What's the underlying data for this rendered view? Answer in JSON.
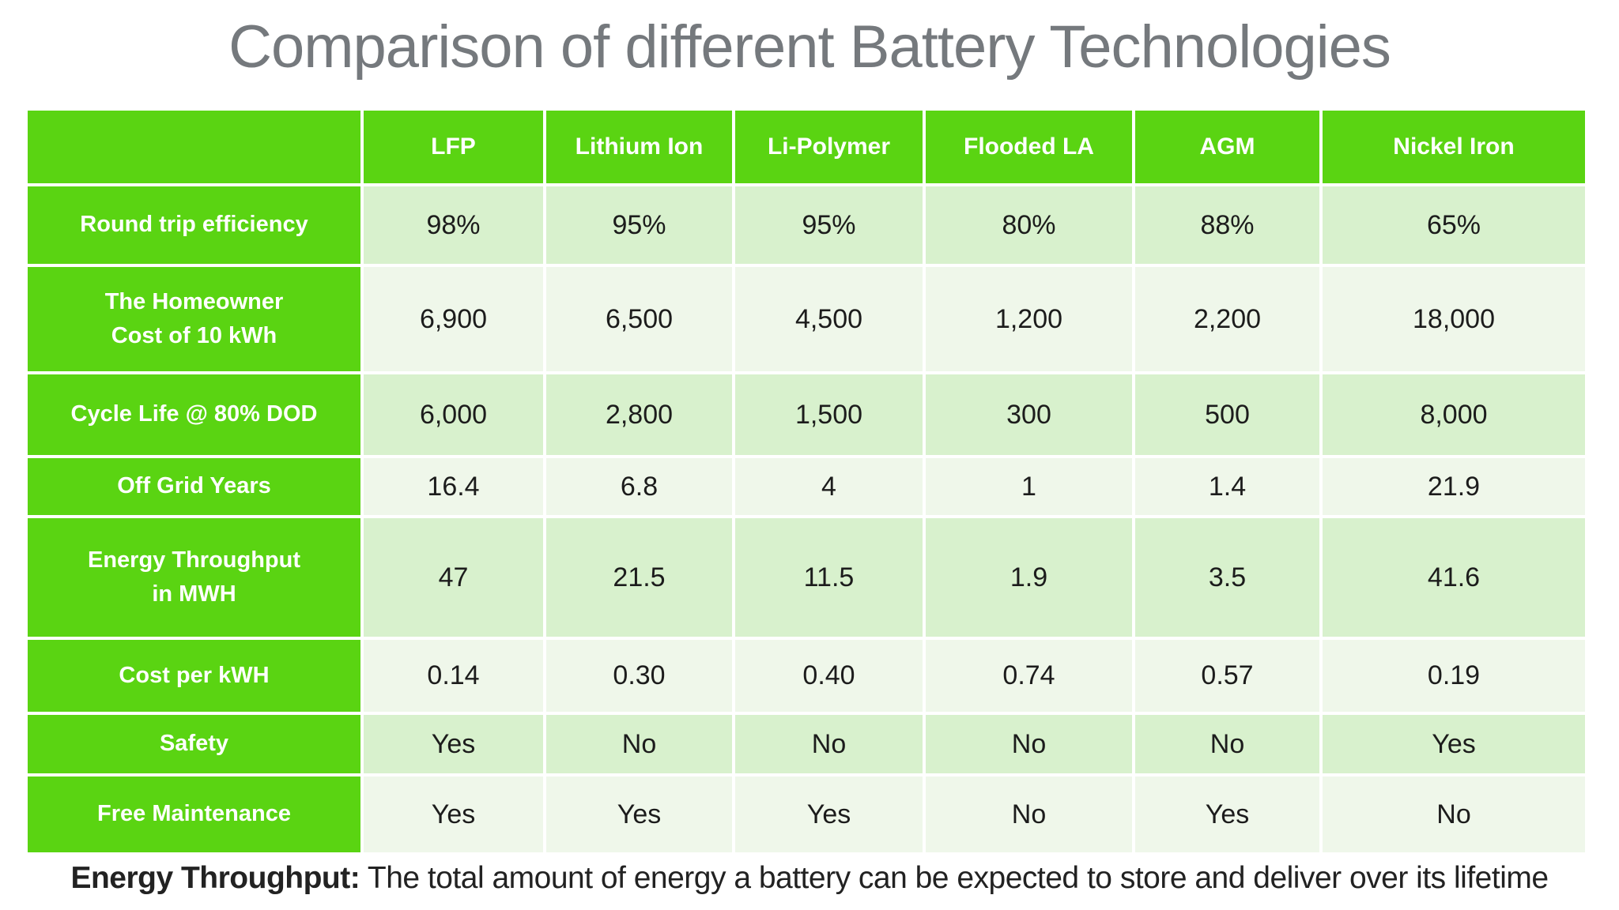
{
  "chart_data": {
    "type": "table",
    "title": "Comparison of different Battery Technologies",
    "columns": [
      "LFP",
      "Lithium Ion",
      "Li-Polymer",
      "Flooded LA",
      "AGM",
      "Nickel Iron"
    ],
    "rows": [
      {
        "label": "Round trip efficiency",
        "values": [
          "98%",
          "95%",
          "95%",
          "80%",
          "88%",
          "65%"
        ]
      },
      {
        "label": "The Homeowner\nCost of 10 kWh",
        "values": [
          "6,900",
          "6,500",
          "4,500",
          "1,200",
          "2,200",
          "18,000"
        ]
      },
      {
        "label": "Cycle Life @ 80% DOD",
        "values": [
          "6,000",
          "2,800",
          "1,500",
          "300",
          "500",
          "8,000"
        ]
      },
      {
        "label": "Off Grid Years",
        "values": [
          "16.4",
          "6.8",
          "4",
          "1",
          "1.4",
          "21.9"
        ]
      },
      {
        "label": "Energy Throughput\nin MWH",
        "values": [
          "47",
          "21.5",
          "11.5",
          "1.9",
          "3.5",
          "41.6"
        ]
      },
      {
        "label": "Cost per kWH",
        "values": [
          "0.14",
          "0.30",
          "0.40",
          "0.74",
          "0.57",
          "0.19"
        ]
      },
      {
        "label": "Safety",
        "values": [
          "Yes",
          "No",
          "No",
          "No",
          "No",
          "Yes"
        ]
      },
      {
        "label": "Free Maintenance",
        "values": [
          "Yes",
          "Yes",
          "Yes",
          "No",
          "Yes",
          "No"
        ]
      }
    ]
  },
  "footnote": {
    "term": "Energy Throughput:",
    "definition": " The total amount of energy a battery can be expected to store and deliver over its lifetime"
  },
  "colors": {
    "header_green": "#5ad412",
    "row_light_green": "#d8f1cd",
    "row_pale_green": "#eff7ea",
    "title_gray": "#75797d",
    "data_ink": "#1c1c1c",
    "grid_white": "#ffffff"
  }
}
